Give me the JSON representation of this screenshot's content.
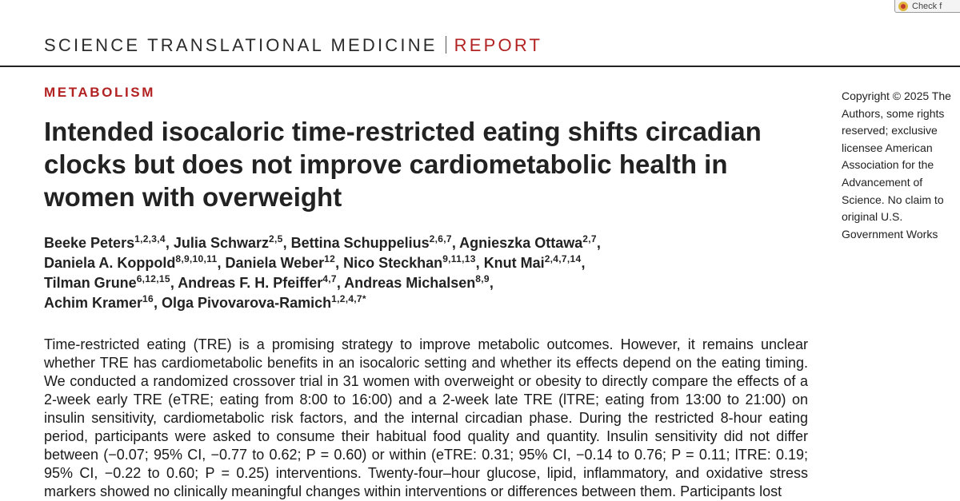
{
  "header": {
    "journal": "SCIENCE TRANSLATIONAL MEDICINE",
    "section": "REPORT",
    "accent_color": "#b22222"
  },
  "badge": {
    "label": "Check f",
    "icon": "crossmark-icon"
  },
  "article": {
    "category": "METABOLISM",
    "title": "Intended isocaloric time-restricted eating shifts circadian clocks but does not improve cardiometabolic health in women with overweight",
    "copyright": "Copyright © 2025 The Authors, some rights reserved; exclusive licensee American Association for the Advancement of Science. No claim to original U.S. Government Works",
    "authors": [
      {
        "name": "Beeke Peters",
        "aff": "1,2,3,4"
      },
      {
        "name": "Julia Schwarz",
        "aff": "2,5"
      },
      {
        "name": "Bettina Schuppelius",
        "aff": "2,6,7"
      },
      {
        "name": "Agnieszka Ottawa",
        "aff": "2,7"
      },
      {
        "name": "Daniela A. Koppold",
        "aff": "8,9,10,11"
      },
      {
        "name": "Daniela Weber",
        "aff": "12"
      },
      {
        "name": "Nico Steckhan",
        "aff": "9,11,13"
      },
      {
        "name": "Knut Mai",
        "aff": "2,4,7,14"
      },
      {
        "name": "Tilman Grune",
        "aff": "6,12,15"
      },
      {
        "name": "Andreas F. H. Pfeiffer",
        "aff": "4,7"
      },
      {
        "name": "Andreas Michalsen",
        "aff": "8,9"
      },
      {
        "name": "Achim Kramer",
        "aff": "16"
      },
      {
        "name": "Olga Pivovarova-Ramich",
        "aff": "1,2,4,7",
        "corresponding": "*"
      }
    ],
    "abstract": "Time-restricted eating (TRE) is a promising strategy to improve metabolic outcomes. However, it remains unclear whether TRE has cardiometabolic benefits in an isocaloric setting and whether its effects depend on the eating timing. We conducted a randomized crossover trial in 31 women with overweight or obesity to directly compare the effects of a 2-week early TRE (eTRE; eating from 8:00 to 16:00) and a 2-week late TRE (lTRE; eating from 13:00 to 21:00) on insulin sensitivity, cardiometabolic risk factors, and the internal circadian phase. During the restricted 8-hour eating period, participants were asked to consume their habitual food quality and quantity. Insulin sensitivity did not differ between (−0.07; 95% CI, −0.77 to 0.62; P = 0.60) or within (eTRE: 0.31; 95% CI, −0.14 to 0.76; P = 0.11; lTRE: 0.19; 95% CI, −0.22 to 0.60; P = 0.25) interventions. Twenty-four–hour glucose, lipid, inflammatory, and oxidative stress markers showed no clinically meaningful changes within interventions or differences between them. Participants lost"
  }
}
